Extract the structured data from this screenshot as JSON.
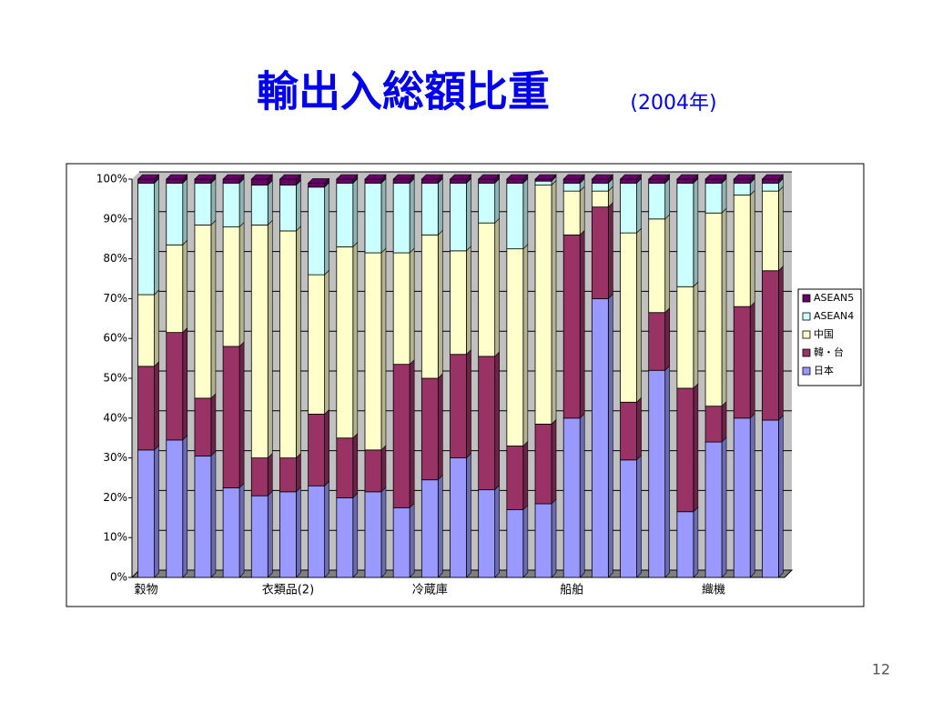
{
  "chart_data": {
    "type": "stacked_bar",
    "title": "輸出入総額比重",
    "subtitle": "(2004年)",
    "categories": [
      "穀物",
      null,
      null,
      null,
      null,
      "衣類品(2)",
      null,
      null,
      null,
      null,
      "冷蔵庫",
      null,
      null,
      null,
      null,
      "船舶",
      null,
      null,
      null,
      null,
      "織機",
      null,
      null
    ],
    "series": [
      {
        "name": "日本",
        "color": "#9999ff",
        "values": [
          32,
          34.5,
          30.5,
          22.5,
          20.5,
          21.5,
          23,
          20,
          21.5,
          17.5,
          24.5,
          30,
          22,
          17,
          18.5,
          40,
          70,
          29.5,
          52,
          16.5,
          34,
          40,
          39.5
        ]
      },
      {
        "name": "韓・台",
        "color": "#993366",
        "values": [
          21,
          27,
          14.5,
          35.5,
          9.5,
          8.5,
          18,
          15,
          10.5,
          36,
          25.5,
          26,
          33.5,
          16,
          20,
          46,
          23,
          14.5,
          14.5,
          31,
          9,
          28,
          37.5
        ]
      },
      {
        "name": "中国",
        "color": "#ffffcc",
        "values": [
          18,
          22,
          43.5,
          30,
          58.5,
          57,
          35,
          48,
          49.5,
          28,
          36,
          26,
          33.5,
          49.5,
          60,
          11,
          4,
          42.5,
          23.5,
          25.5,
          48.5,
          28,
          20
        ]
      },
      {
        "name": "ASEAN4",
        "color": "#ccffff",
        "values": [
          28,
          15.5,
          10.5,
          11,
          10,
          11.5,
          22,
          16,
          17.5,
          17.5,
          13,
          17,
          10,
          16.5,
          1,
          2,
          2,
          12.5,
          9,
          26,
          7.5,
          3,
          2
        ]
      },
      {
        "name": "ASEAN5",
        "color": "#660066",
        "values": [
          1,
          1,
          1,
          1,
          1.5,
          1.5,
          1,
          1,
          1,
          1,
          1,
          1,
          1,
          1,
          0.5,
          1,
          1,
          1,
          1,
          1,
          1,
          1,
          1
        ]
      }
    ],
    "ylim": [
      0,
      100
    ],
    "yticks": [
      {
        "value": 0,
        "label": "0%"
      },
      {
        "value": 10,
        "label": "10%"
      },
      {
        "value": 20,
        "label": "20%"
      },
      {
        "value": 30,
        "label": "30%"
      },
      {
        "value": 40,
        "label": "40%"
      },
      {
        "value": 50,
        "label": "50%"
      },
      {
        "value": 60,
        "label": "60%"
      },
      {
        "value": 70,
        "label": "70%"
      },
      {
        "value": 80,
        "label": "80%"
      },
      {
        "value": 90,
        "label": "90%"
      },
      {
        "value": 100,
        "label": "100%"
      }
    ],
    "grid": true,
    "legend": "right"
  },
  "slide": {
    "page_number": "12"
  }
}
